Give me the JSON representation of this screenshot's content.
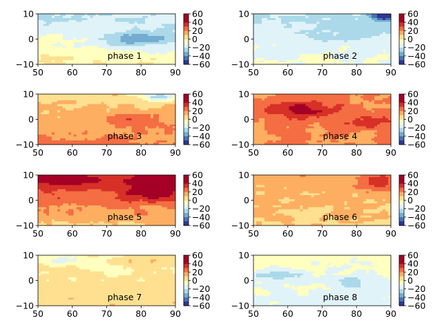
{
  "chart_data": {
    "type": "heatmap",
    "plot_kind": "filled contour",
    "colormap": "RdYlBu_r",
    "levels": [
      -60,
      -50,
      -40,
      -30,
      -20,
      -10,
      0,
      10,
      20,
      30,
      40,
      50,
      60
    ],
    "xlim": [
      50,
      90
    ],
    "ylim": [
      -10,
      10
    ],
    "xticks": [
      "50",
      "60",
      "70",
      "80",
      "90"
    ],
    "yticks": [
      "10",
      "0",
      "−10"
    ],
    "colorbar_ticks": [
      "60",
      "40",
      "20",
      "0",
      "−20",
      "−40",
      "−60"
    ],
    "colorbar_range": [
      -60,
      60
    ],
    "panels": [
      {
        "label": "phase 1",
        "base": -10,
        "ns_gradient": -10,
        "core": {
          "lon": 80,
          "lat": 0,
          "amp": -28,
          "wx": 11,
          "wy": 3.5
        },
        "hot": []
      },
      {
        "label": "phase 2",
        "base": -14,
        "ns_gradient": -6,
        "core": {
          "lon": 78,
          "lat": 3,
          "amp": -12,
          "wx": 11,
          "wy": 4
        },
        "hot": [
          {
            "lon": 88,
            "lat": 9,
            "amp": -40,
            "wx": 4,
            "wy": 2
          }
        ]
      },
      {
        "label": "phase 3",
        "base": 14,
        "ns_gradient": -8,
        "core": {
          "lon": 77,
          "lat": 0,
          "amp": 16,
          "wx": 9,
          "wy": 3
        },
        "hot": [
          {
            "lon": 85,
            "lat": 9,
            "amp": -30,
            "wx": 5,
            "wy": 2
          }
        ]
      },
      {
        "label": "phase 4",
        "base": 20,
        "ns_gradient": 0,
        "core": {
          "lon": 64,
          "lat": 4,
          "amp": 25,
          "wx": 10,
          "wy": 3.5
        },
        "hot": [
          {
            "lon": 83,
            "lat": -1,
            "amp": 18,
            "wx": 8,
            "wy": 2.5
          }
        ]
      },
      {
        "label": "phase 5",
        "base": 25,
        "ns_gradient": 14,
        "core": {
          "lon": 83,
          "lat": 4,
          "amp": 28,
          "wx": 7,
          "wy": 4
        },
        "hot": [
          {
            "lon": 57,
            "lat": 8,
            "amp": 15,
            "wx": 8,
            "wy": 2
          }
        ]
      },
      {
        "label": "phase 6",
        "base": 12,
        "ns_gradient": 4,
        "core": {
          "lon": 86,
          "lat": 7,
          "amp": 22,
          "wx": 5,
          "wy": 3
        },
        "hot": []
      },
      {
        "label": "phase 7",
        "base": 2,
        "ns_gradient": -5,
        "core": {
          "lon": 80,
          "lat": 8,
          "amp": 12,
          "wx": 7,
          "wy": 2
        },
        "hot": [
          {
            "lon": 57,
            "lat": 8,
            "amp": -10,
            "wx": 6,
            "wy": 2
          }
        ]
      },
      {
        "label": "phase 8",
        "base": -10,
        "ns_gradient": 4,
        "core": {
          "lon": 57,
          "lat": 2,
          "amp": -14,
          "wx": 8,
          "wy": 3
        },
        "hot": [
          {
            "lon": 79,
            "lat": -1,
            "amp": -12,
            "wx": 7,
            "wy": 3
          }
        ]
      }
    ]
  }
}
